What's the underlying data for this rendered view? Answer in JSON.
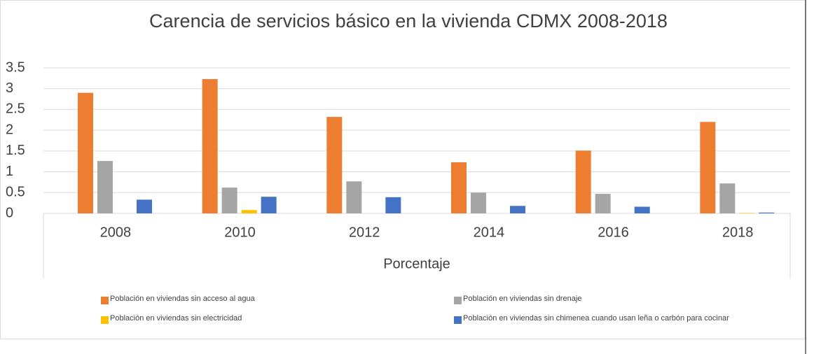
{
  "chart_data": {
    "type": "bar",
    "title": "Carencia de servicios básico en la vivienda CDMX 2008-2018",
    "x_label": "Porcentaje",
    "categories": [
      "2008",
      "2010",
      "2012",
      "2014",
      "2016",
      "2018"
    ],
    "series": [
      {
        "name": "Población en viviendas sin acceso al agua",
        "color": "#ED7D31",
        "values": [
          2.9,
          3.23,
          2.32,
          1.23,
          1.51,
          2.2
        ]
      },
      {
        "name": "Población en viviendas sin drenaje",
        "color": "#A5A5A5",
        "values": [
          1.26,
          0.62,
          0.77,
          0.5,
          0.47,
          0.72
        ]
      },
      {
        "name": "Población en viviendas sin electricidad",
        "color": "#FFC000",
        "values": [
          0,
          0.08,
          0,
          0,
          0,
          0.01
        ]
      },
      {
        "name": "Población en viviendas sin chimenea cuando usan leña o carbón para cocinar",
        "color": "#4472C4",
        "values": [
          0.33,
          0.4,
          0.39,
          0.18,
          0.16,
          0.02
        ]
      }
    ],
    "ylim": [
      0,
      3.5
    ],
    "yticks": [
      0,
      0.5,
      1,
      1.5,
      2,
      2.5,
      3,
      3.5
    ],
    "grid": true
  }
}
